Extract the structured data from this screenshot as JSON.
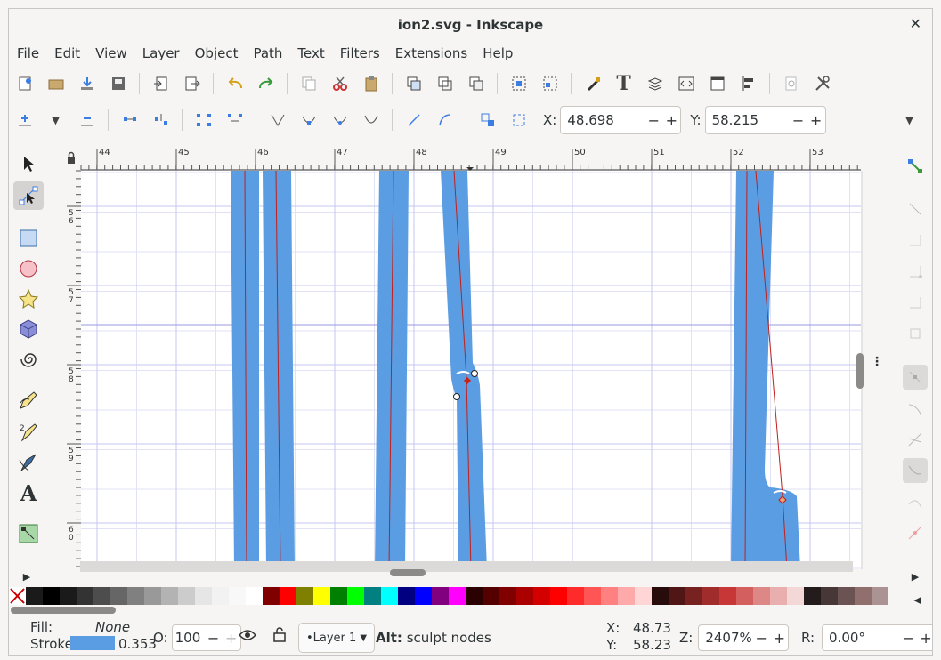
{
  "window": {
    "title": "ion2.svg - Inkscape",
    "close_glyph": "✕"
  },
  "menu": [
    "File",
    "Edit",
    "View",
    "Layer",
    "Object",
    "Path",
    "Text",
    "Filters",
    "Extensions",
    "Help"
  ],
  "toolbar": {
    "x_label": "X:",
    "x_value": "48.698",
    "y_label": "Y:",
    "y_value": "58.215",
    "minus": "−",
    "plus": "+"
  },
  "ruler": {
    "top_labels": [
      "44",
      "45",
      "46",
      "47",
      "48",
      "49",
      "50",
      "51",
      "52",
      "53"
    ],
    "left_labels": [
      "5\n6",
      "5\n7",
      "5\n8",
      "5\n9",
      "6\n0"
    ]
  },
  "palette": [
    "#1a1a1a",
    "#000000",
    "#1a1a1a",
    "#333333",
    "#4d4d4d",
    "#666666",
    "#808080",
    "#999999",
    "#b3b3b3",
    "#cccccc",
    "#e6e6e6",
    "#f2f2f2",
    "#f8f8f8",
    "#ffffff",
    "#800000",
    "#ff0000",
    "#808000",
    "#ffff00",
    "#008000",
    "#00ff00",
    "#008080",
    "#00ffff",
    "#000080",
    "#0000ff",
    "#800080",
    "#ff00ff",
    "#2b0000",
    "#550000",
    "#800000",
    "#aa0000",
    "#d40000",
    "#ff0000",
    "#ff2a2a",
    "#ff5555",
    "#ff8080",
    "#ffaaaa",
    "#ffd5d5",
    "#280b0b",
    "#501616",
    "#782121",
    "#a02c2c",
    "#c83737",
    "#d35f5f",
    "#de8787",
    "#e9afaf",
    "#f4d7d7",
    "#241c1c",
    "#483737",
    "#6c5353",
    "#916f6f",
    "#ac9393"
  ],
  "status": {
    "fill_label": "Fill:",
    "fill_value": "None",
    "stroke_label": "Stroke:",
    "stroke_width": "0.353",
    "stroke_color": "#5b9de2",
    "opacity_label": "O:",
    "opacity_value": "100",
    "layer": "•Layer 1",
    "hint_key": "Alt:",
    "hint_text": " sculpt nodes",
    "cursor_x_label": "X:",
    "cursor_x": "48.73",
    "cursor_y_label": "Y:",
    "cursor_y": "58.23",
    "zoom_label": "Z:",
    "zoom_value": "2407%",
    "rotation_label": "R:",
    "rotation_value": "0.00°"
  },
  "colors": {
    "stroke_blue": "#5b9de2",
    "path_red": "#c0201c",
    "grid": "#c6c6f0"
  }
}
